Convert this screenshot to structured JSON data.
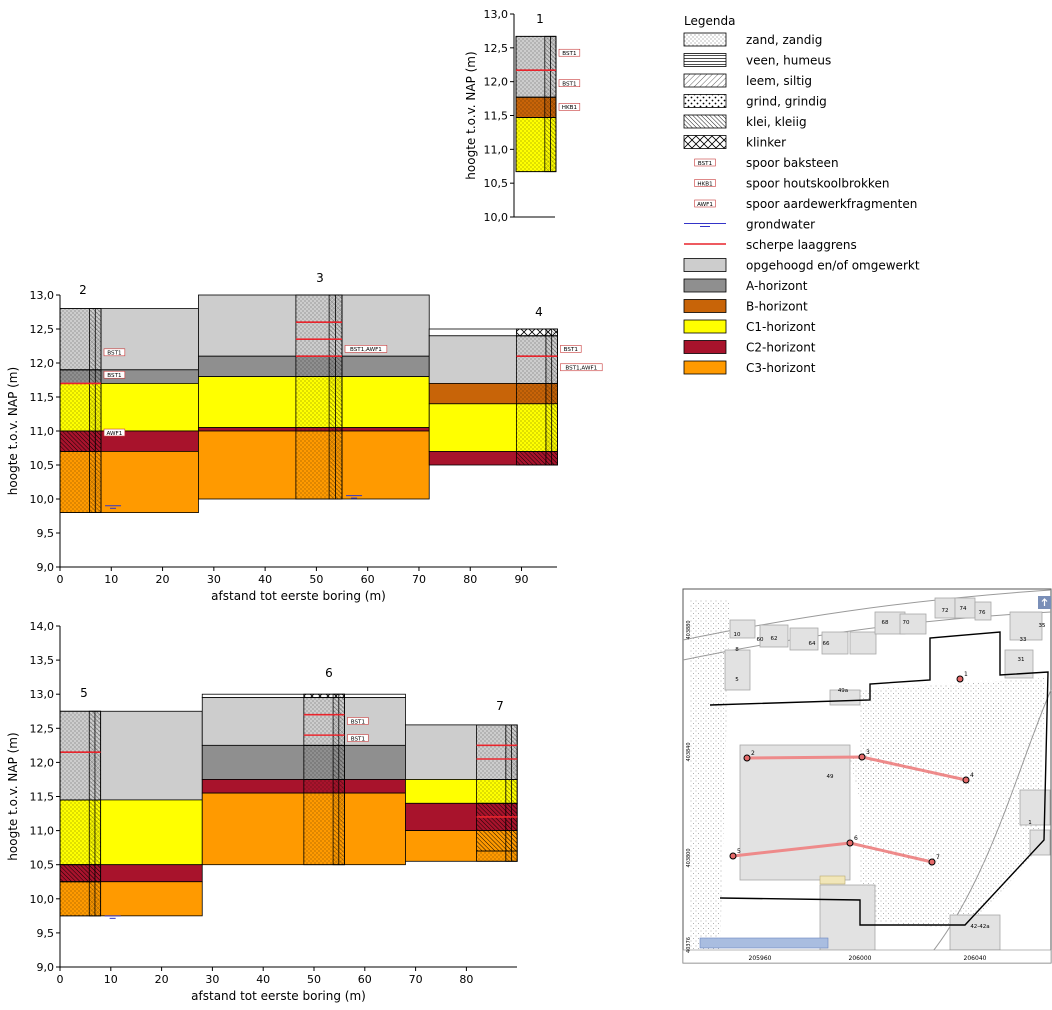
{
  "colors": {
    "opgehoogd": "#cdcdcd",
    "A": "#8f8f8f",
    "B": "#c86408",
    "C1": "#ffff00",
    "C2": "#a8132c",
    "C3": "#ff9a00",
    "laaggrens": "#e8242c",
    "grondwater": "#3434c8",
    "trace": "#ee8a8a"
  },
  "legend": {
    "title": "Legenda",
    "items": [
      {
        "key": "zand",
        "label": "zand, zandig",
        "kind": "pattern"
      },
      {
        "key": "veen",
        "label": "veen, humeus",
        "kind": "pattern"
      },
      {
        "key": "leem",
        "label": "leem, siltig",
        "kind": "pattern"
      },
      {
        "key": "grind",
        "label": "grind, grindig",
        "kind": "pattern"
      },
      {
        "key": "klei",
        "label": "klei, kleiig",
        "kind": "pattern"
      },
      {
        "key": "klinker",
        "label": "klinker",
        "kind": "pattern"
      },
      {
        "key": "BST1",
        "label": "spoor baksteen",
        "kind": "tag",
        "tag": "BST1"
      },
      {
        "key": "HKB1",
        "label": "spoor houtskoolbrokken",
        "kind": "tag",
        "tag": "HKB1"
      },
      {
        "key": "AWF1",
        "label": "spoor aardewerkfragmenten",
        "kind": "tag",
        "tag": "AWF1"
      },
      {
        "key": "gw",
        "label": "grondwater",
        "kind": "gw"
      },
      {
        "key": "grens",
        "label": "scherpe laaggrens",
        "kind": "line"
      },
      {
        "key": "opgehoogd",
        "label": "opgehoogd en/of omgewerkt",
        "kind": "fill"
      },
      {
        "key": "A",
        "label": "A-horizont",
        "kind": "fill"
      },
      {
        "key": "B",
        "label": "B-horizont",
        "kind": "fill"
      },
      {
        "key": "C1",
        "label": "C1-horizont",
        "kind": "fill"
      },
      {
        "key": "C2",
        "label": "C2-horizont",
        "kind": "fill"
      },
      {
        "key": "C3",
        "label": "C3-horizont",
        "kind": "fill"
      }
    ]
  },
  "chart_data": [
    {
      "type": "bar",
      "name": "boring-1",
      "ylabel": "hoogte t.o.v. NAP (m)",
      "ylim": [
        10.0,
        13.0
      ],
      "yticks": [
        "10,0",
        "10,5",
        "11,0",
        "11,5",
        "12,0",
        "12,5",
        "13,0"
      ],
      "borings": [
        {
          "label": "1",
          "top": 12.67,
          "layers": [
            {
              "from": 12.67,
              "to": 12.17,
              "pattern": "zand"
            },
            {
              "from": 12.17,
              "to": 11.77,
              "pattern": "zand"
            },
            {
              "from": 11.77,
              "to": 11.47,
              "pattern": "zand"
            },
            {
              "from": 11.47,
              "to": 10.67,
              "pattern": "zand"
            }
          ],
          "sharp": [
            12.17
          ],
          "traces": [
            {
              "depth": 12.42,
              "text": "BST1"
            },
            {
              "depth": 11.97,
              "text": "BST1"
            },
            {
              "depth": 11.62,
              "text": "HKB1"
            }
          ]
        }
      ],
      "profiles": [
        {
          "x": [
            0,
            10
          ],
          "horizons": [
            {
              "h": "opgehoogd",
              "top": 12.67,
              "bottom": 11.77
            },
            {
              "h": "B",
              "top": 11.77,
              "bottom": 11.47
            },
            {
              "h": "C1",
              "top": 11.47,
              "bottom": 10.67
            }
          ]
        }
      ]
    },
    {
      "type": "bar",
      "name": "profile-2-3-4",
      "xlabel": "afstand tot eerste boring (m)",
      "ylabel": "hoogte t.o.v. NAP (m)",
      "ylim": [
        9.0,
        13.0
      ],
      "xlim": [
        0,
        97
      ],
      "xticks": [
        "0",
        "10",
        "20",
        "30",
        "40",
        "50",
        "60",
        "70",
        "80",
        "90"
      ],
      "yticks": [
        "9,0",
        "9,5",
        "10,0",
        "10,5",
        "11,0",
        "11,5",
        "12,0",
        "12,5",
        "13,0"
      ],
      "borings": [
        {
          "label": "2",
          "x": 0,
          "width": 8,
          "top": 12.8,
          "layers": [
            {
              "from": 12.8,
              "to": 11.9,
              "pattern": "zand"
            },
            {
              "from": 11.9,
              "to": 11.7,
              "pattern": "zand"
            },
            {
              "from": 11.7,
              "to": 11.0,
              "pattern": "zand"
            },
            {
              "from": 11.0,
              "to": 10.7,
              "pattern": "klei"
            },
            {
              "from": 10.7,
              "to": 9.8,
              "pattern": "zand"
            }
          ],
          "sharp": [
            11.7
          ],
          "traces": [
            {
              "depth": 12.15,
              "text": "BST1"
            },
            {
              "depth": 11.82,
              "text": "BST1"
            },
            {
              "depth": 10.97,
              "text": "AWF1"
            }
          ],
          "gw": 9.9
        },
        {
          "label": "3",
          "x": 46,
          "width": 9,
          "top": 13.0,
          "layers": [
            {
              "from": 13.0,
              "to": 12.6,
              "pattern": "zand"
            },
            {
              "from": 12.6,
              "to": 12.1,
              "pattern": "zand"
            },
            {
              "from": 12.1,
              "to": 11.8,
              "pattern": "zand"
            },
            {
              "from": 11.8,
              "to": 11.0,
              "pattern": "zand"
            },
            {
              "from": 11.0,
              "to": 10.0,
              "pattern": "zand"
            }
          ],
          "sharp": [
            12.6,
            12.35,
            12.1
          ],
          "traces": [
            {
              "depth": 12.2,
              "text": "BST1,AWF1"
            }
          ],
          "gw": 10.05
        },
        {
          "label": "4",
          "x": 89,
          "width": 8,
          "top": 12.5,
          "layers": [
            {
              "from": 12.5,
              "to": 12.4,
              "pattern": "klinker"
            },
            {
              "from": 12.4,
              "to": 11.7,
              "pattern": "zand"
            },
            {
              "from": 11.7,
              "to": 10.7,
              "pattern": "zand"
            },
            {
              "from": 10.7,
              "to": 10.5,
              "pattern": "klei"
            }
          ],
          "sharp": [
            12.1
          ],
          "traces": [
            {
              "depth": 12.2,
              "text": "BST1"
            },
            {
              "depth": 11.93,
              "text": "BST1,AWF1"
            }
          ]
        }
      ],
      "profiles": [
        {
          "x": [
            0,
            27
          ],
          "horizons": [
            {
              "h": "opgehoogd",
              "top": 12.8,
              "bottom": 11.9
            },
            {
              "h": "A",
              "top": 11.9,
              "bottom": 11.7
            },
            {
              "h": "C1",
              "top": 11.7,
              "bottom": 11.0
            },
            {
              "h": "C2",
              "top": 11.0,
              "bottom": 10.7
            },
            {
              "h": "C3",
              "top": 10.7,
              "bottom": 9.8
            }
          ]
        },
        {
          "x": [
            27,
            72
          ],
          "horizons": [
            {
              "h": "opgehoogd",
              "top": 13.0,
              "bottom": 12.1
            },
            {
              "h": "A",
              "top": 12.1,
              "bottom": 11.8
            },
            {
              "h": "C1",
              "top": 11.8,
              "bottom": 11.05
            },
            {
              "h": "C2",
              "top": 11.05,
              "bottom": 11.0
            },
            {
              "h": "C3",
              "top": 11.0,
              "bottom": 10.0
            }
          ]
        },
        {
          "x": [
            72,
            97
          ],
          "horizons": [
            {
              "h": "white",
              "top": 12.5,
              "bottom": 12.4
            },
            {
              "h": "opgehoogd",
              "top": 12.4,
              "bottom": 11.7
            },
            {
              "h": "B",
              "top": 11.7,
              "bottom": 11.4
            },
            {
              "h": "C1",
              "top": 11.4,
              "bottom": 10.7
            },
            {
              "h": "C2",
              "top": 10.7,
              "bottom": 10.5
            }
          ]
        }
      ]
    },
    {
      "type": "bar",
      "name": "profile-5-6-7",
      "xlabel": "afstand tot eerste boring (m)",
      "ylabel": "hoogte t.o.v. NAP (m)",
      "ylim": [
        9.0,
        14.0
      ],
      "xlim": [
        0,
        90
      ],
      "xticks": [
        "0",
        "10",
        "20",
        "30",
        "40",
        "50",
        "60",
        "70",
        "80"
      ],
      "yticks": [
        "9,0",
        "9,5",
        "10,0",
        "10,5",
        "11,0",
        "11,5",
        "12,0",
        "12,5",
        "13,0",
        "13,5",
        "14,0"
      ],
      "borings": [
        {
          "label": "5",
          "x": 0,
          "width": 8,
          "top": 12.75,
          "layers": [
            {
              "from": 12.75,
              "to": 11.45,
              "pattern": "zand"
            },
            {
              "from": 11.45,
              "to": 10.5,
              "pattern": "zand"
            },
            {
              "from": 10.5,
              "to": 10.25,
              "pattern": "klei"
            },
            {
              "from": 10.25,
              "to": 9.75,
              "pattern": "zand"
            }
          ],
          "sharp": [
            12.15
          ],
          "traces": [],
          "gw": 9.75
        },
        {
          "label": "6",
          "x": 48,
          "width": 8,
          "top": 13.0,
          "layers": [
            {
              "from": 13.0,
              "to": 12.95,
              "pattern": "klinker"
            },
            {
              "from": 12.95,
              "to": 12.25,
              "pattern": "zand"
            },
            {
              "from": 12.25,
              "to": 11.75,
              "pattern": "zand"
            },
            {
              "from": 11.75,
              "to": 11.55,
              "pattern": "zand"
            },
            {
              "from": 11.55,
              "to": 10.5,
              "pattern": "zand"
            }
          ],
          "sharp": [
            12.7,
            12.4
          ],
          "traces": [
            {
              "depth": 12.6,
              "text": "BST1"
            },
            {
              "depth": 12.35,
              "text": "BST1"
            }
          ]
        },
        {
          "label": "7",
          "x": 82,
          "width": 8,
          "top": 12.55,
          "layers": [
            {
              "from": 12.55,
              "to": 11.75,
              "pattern": "zand"
            },
            {
              "from": 11.75,
              "to": 11.4,
              "pattern": "zand"
            },
            {
              "from": 11.4,
              "to": 10.7,
              "pattern": "klei"
            },
            {
              "from": 10.7,
              "to": 10.55,
              "pattern": "zand"
            }
          ],
          "sharp": [
            12.25,
            12.05,
            11.2
          ],
          "traces": []
        }
      ],
      "profiles": [
        {
          "x": [
            0,
            28
          ],
          "horizons": [
            {
              "h": "opgehoogd",
              "top": 12.75,
              "bottom": 11.45
            },
            {
              "h": "C1",
              "top": 11.45,
              "bottom": 10.5
            },
            {
              "h": "C2",
              "top": 10.5,
              "bottom": 10.25
            },
            {
              "h": "C3",
              "top": 10.25,
              "bottom": 9.75
            }
          ]
        },
        {
          "x": [
            28,
            68
          ],
          "horizons": [
            {
              "h": "white",
              "top": 13.0,
              "bottom": 12.95
            },
            {
              "h": "opgehoogd",
              "top": 12.95,
              "bottom": 12.25
            },
            {
              "h": "A",
              "top": 12.25,
              "bottom": 11.75
            },
            {
              "h": "C2",
              "top": 11.75,
              "bottom": 11.55
            },
            {
              "h": "C3",
              "top": 11.55,
              "bottom": 10.5
            }
          ]
        },
        {
          "x": [
            68,
            90
          ],
          "horizons": [
            {
              "h": "opgehoogd",
              "top": 12.55,
              "bottom": 11.75
            },
            {
              "h": "C1",
              "top": 11.75,
              "bottom": 11.4
            },
            {
              "h": "C2",
              "top": 11.4,
              "bottom": 11.0
            },
            {
              "h": "C3",
              "top": 11.0,
              "bottom": 10.55
            }
          ]
        }
      ]
    }
  ],
  "map": {
    "boring_labels": [
      "1",
      "2",
      "3",
      "4",
      "5",
      "6",
      "7"
    ],
    "house_numbers": [
      "72",
      "74",
      "76",
      "35",
      "33",
      "31",
      "10",
      "8",
      "5",
      "60",
      "62",
      "64",
      "66",
      "68",
      "70",
      "49a",
      "49",
      "42-42a",
      "1"
    ],
    "coord_labels": [
      "205960",
      "206000",
      "206040"
    ],
    "side_labels": [
      "403880",
      "403840",
      "403800",
      "40376"
    ]
  }
}
